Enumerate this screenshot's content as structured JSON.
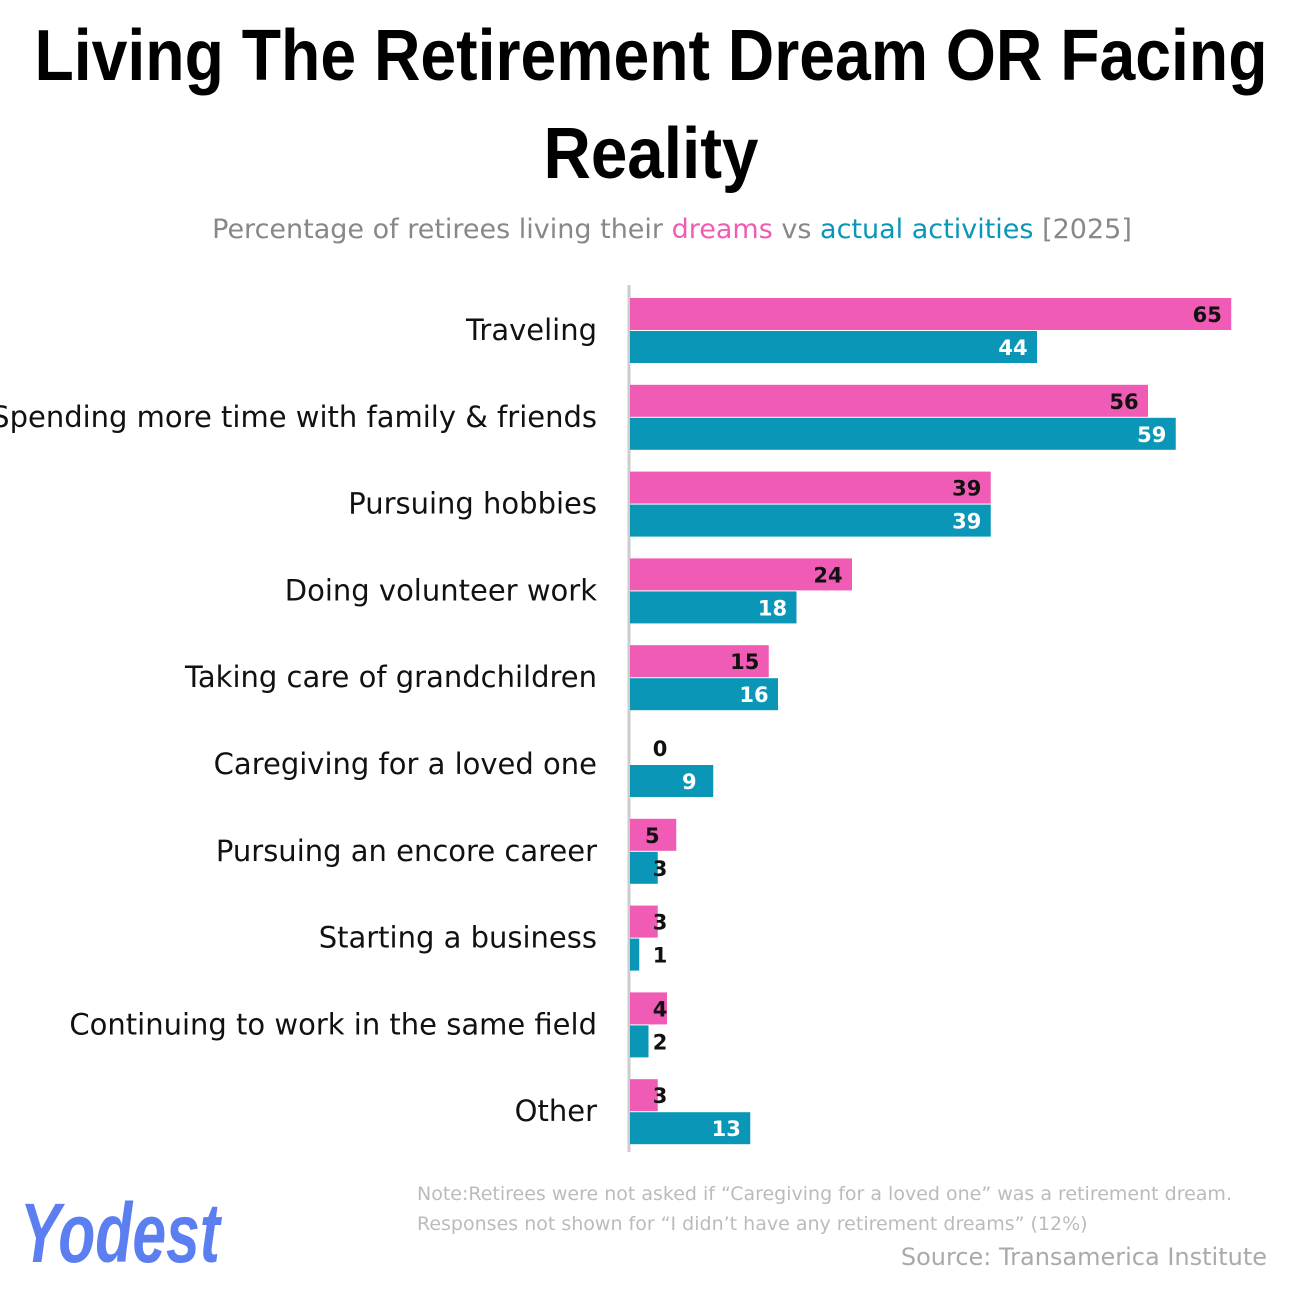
{
  "chart_data": {
    "type": "hbar",
    "title": [
      "Living The Retirement Dream OR Facing",
      "Reality"
    ],
    "subtitle": [
      "Percentage of retirees living their",
      "vs",
      "[2025]"
    ],
    "categories": [
      "Traveling",
      "Spending more time with family & friends",
      "Pursuing hobbies",
      "Doing volunteer work",
      "Taking care of grandchildren",
      "Caregiving for a loved one",
      "Pursuing an encore career",
      "Starting a business",
      "Continuing to work in the same field",
      "Other"
    ],
    "series": [
      {
        "name": "dreams",
        "color": "#ef5bb5",
        "values": [
          65,
          56,
          39,
          24,
          15,
          0,
          5,
          3,
          4,
          3
        ]
      },
      {
        "name": "actual activities",
        "color": "#0a97b7",
        "values": [
          44,
          59,
          39,
          18,
          16,
          9,
          3,
          1,
          2,
          13
        ]
      }
    ],
    "notes": [
      "Note:Retirees were not asked if “Caregiving for a loved one” was a retirement dream.",
      "Responses not shown for “I didn’t have any retirement dreams” (12%)"
    ],
    "source": "Source: Transamerica Institute",
    "logo": "Yodest"
  }
}
